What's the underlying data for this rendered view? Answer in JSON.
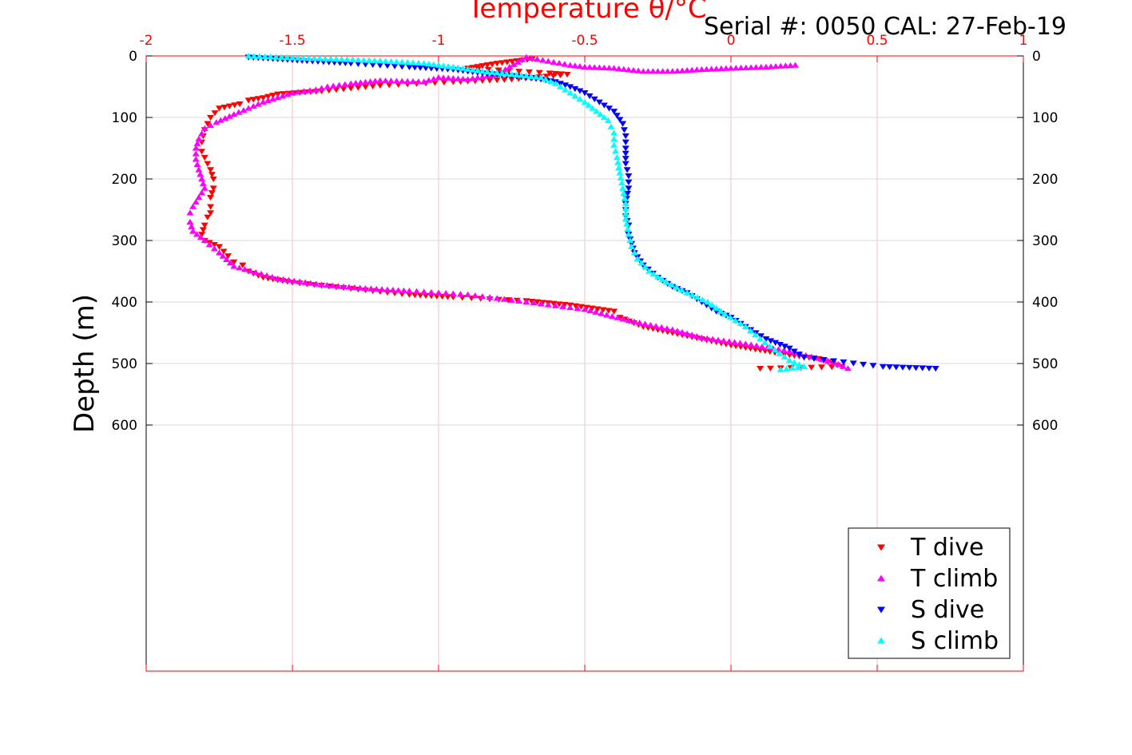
{
  "chart_data": {
    "type": "scatter",
    "title": "Temperature θ/°C",
    "subtitle": "Serial #: 0050  CAL: 27-Feb-19",
    "xlabel": "Temperature θ/°C",
    "ylabel": "Depth (m)",
    "xlim": [
      -2,
      1
    ],
    "ylim": [
      1000,
      0
    ],
    "y_reversed": true,
    "x_axis_position": "top",
    "x_ticks": [
      "-2",
      "-1.5",
      "-1",
      "-0.5",
      "0",
      "0.5",
      "1"
    ],
    "y_ticks": [
      "0",
      "100",
      "200",
      "300",
      "400",
      "500",
      "600"
    ],
    "grid": true,
    "legend_position": "bottom-right",
    "colors": {
      "t_axis": "#ff0000",
      "t_grid": "#f4c2c2",
      "s_grid": "#d9d9d9",
      "axis": "#000000"
    },
    "series": [
      {
        "name": "T dive",
        "color": "#ff0000",
        "marker": "triangle-down",
        "x": [
          -0.68,
          -0.8,
          -0.9,
          -0.62,
          -0.56,
          -0.75,
          -0.95,
          -1.2,
          -1.4,
          -1.55,
          -1.6,
          -1.65,
          -1.68,
          -1.75,
          -1.78,
          -1.8,
          -1.81,
          -1.81,
          -1.8,
          -1.79,
          -1.78,
          -1.77,
          -1.77,
          -1.78,
          -1.78,
          -1.78,
          -1.79,
          -1.8,
          -1.81,
          -1.8,
          -1.75,
          -1.72,
          -1.7,
          -1.67,
          -1.65,
          -1.6,
          -1.5,
          -1.3,
          -1.1,
          -0.95,
          -0.7,
          -0.55,
          -0.4,
          -0.38,
          -0.3,
          -0.2,
          -0.1,
          0.0,
          0.1,
          0.2,
          0.3,
          0.38,
          0.1
        ],
        "y": [
          5,
          12,
          20,
          28,
          30,
          38,
          42,
          48,
          57,
          62,
          68,
          72,
          78,
          85,
          100,
          120,
          140,
          155,
          165,
          175,
          185,
          200,
          215,
          230,
          245,
          255,
          262,
          275,
          290,
          300,
          310,
          325,
          335,
          340,
          350,
          360,
          368,
          378,
          388,
          392,
          398,
          405,
          415,
          425,
          440,
          450,
          460,
          470,
          478,
          486,
          492,
          505,
          508
        ]
      },
      {
        "name": "T climb",
        "color": "#ff00ff",
        "marker": "triangle-up",
        "x": [
          0.22,
          0.12,
          0.0,
          -0.1,
          -0.2,
          -0.3,
          -0.4,
          -0.5,
          -0.55,
          -0.7,
          -0.8,
          -0.9,
          -1.0,
          -1.05,
          -1.2,
          -1.3,
          -1.38,
          -1.42,
          -1.5,
          -1.6,
          -1.7,
          -1.76,
          -1.8,
          -1.82,
          -1.83,
          -1.83,
          -1.82,
          -1.81,
          -1.8,
          -1.82,
          -1.84,
          -1.85,
          -1.85,
          -1.84,
          -1.8,
          -1.75,
          -1.7,
          -1.55,
          -1.4,
          -1.25,
          -1.1,
          -0.9,
          -0.7,
          -0.5,
          -0.35,
          -0.2,
          -0.1,
          0.05,
          0.2,
          0.35,
          0.4
        ],
        "y": [
          15,
          18,
          20,
          22,
          25,
          25,
          20,
          18,
          15,
          2,
          30,
          38,
          35,
          42,
          40,
          45,
          50,
          55,
          60,
          75,
          95,
          108,
          118,
          135,
          150,
          168,
          185,
          200,
          215,
          230,
          245,
          255,
          270,
          285,
          300,
          320,
          342,
          362,
          372,
          378,
          382,
          388,
          400,
          412,
          430,
          445,
          458,
          468,
          480,
          498,
          508
        ]
      },
      {
        "name": "S dive",
        "color": "#0000ff",
        "marker": "triangle-down",
        "x": [
          -1.65,
          -1.55,
          -1.45,
          -1.3,
          -1.1,
          -0.95,
          -0.85,
          -0.75,
          -0.65,
          -0.6,
          -0.55,
          -0.5,
          -0.45,
          -0.4,
          -0.37,
          -0.36,
          -0.36,
          -0.36,
          -0.35,
          -0.35,
          -0.36,
          -0.36,
          -0.35,
          -0.35,
          -0.34,
          -0.33,
          -0.3,
          -0.25,
          -0.2,
          -0.15,
          -0.1,
          -0.05,
          0.0,
          0.05,
          0.12,
          0.2,
          0.25,
          0.52,
          0.7
        ],
        "y": [
          2,
          5,
          8,
          12,
          18,
          22,
          28,
          32,
          38,
          42,
          50,
          60,
          75,
          90,
          110,
          130,
          150,
          175,
          195,
          215,
          240,
          260,
          275,
          290,
          305,
          320,
          340,
          360,
          375,
          385,
          400,
          415,
          425,
          440,
          460,
          475,
          490,
          505,
          508
        ]
      },
      {
        "name": "S climb",
        "color": "#00ffff",
        "marker": "triangle-up",
        "x": [
          -1.65,
          -1.5,
          -1.35,
          -1.2,
          -1.05,
          -0.95,
          -0.85,
          -0.75,
          -0.65,
          -0.6,
          -0.55,
          -0.5,
          -0.46,
          -0.42,
          -0.4,
          -0.4,
          -0.39,
          -0.38,
          -0.37,
          -0.36,
          -0.36,
          -0.35,
          -0.34,
          -0.32,
          -0.28,
          -0.22,
          -0.15,
          -0.08,
          -0.02,
          0.05,
          0.1,
          0.15,
          0.2,
          0.25,
          0.17
        ],
        "y": [
          0,
          3,
          5,
          8,
          12,
          18,
          25,
          30,
          35,
          45,
          60,
          75,
          90,
          105,
          125,
          145,
          165,
          190,
          215,
          240,
          265,
          290,
          310,
          330,
          350,
          368,
          385,
          400,
          420,
          440,
          460,
          478,
          495,
          505,
          510
        ]
      }
    ]
  }
}
